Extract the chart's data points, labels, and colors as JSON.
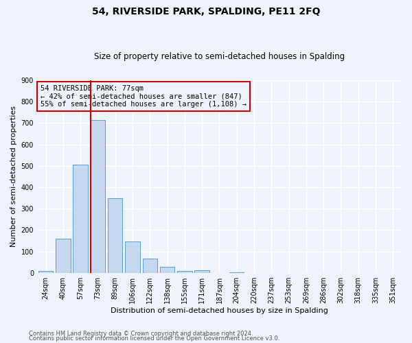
{
  "title": "54, RIVERSIDE PARK, SPALDING, PE11 2FQ",
  "subtitle": "Size of property relative to semi-detached houses in Spalding",
  "xlabel": "Distribution of semi-detached houses by size in Spalding",
  "ylabel": "Number of semi-detached properties",
  "bar_labels": [
    "24sqm",
    "40sqm",
    "57sqm",
    "73sqm",
    "89sqm",
    "106sqm",
    "122sqm",
    "138sqm",
    "155sqm",
    "171sqm",
    "187sqm",
    "204sqm",
    "220sqm",
    "237sqm",
    "253sqm",
    "269sqm",
    "286sqm",
    "302sqm",
    "318sqm",
    "335sqm",
    "351sqm"
  ],
  "bar_values": [
    8,
    160,
    505,
    715,
    350,
    148,
    65,
    28,
    10,
    13,
    0,
    3,
    0,
    0,
    0,
    0,
    0,
    0,
    0,
    0,
    0
  ],
  "bar_color": "#c5d8f0",
  "bar_edge_color": "#5a9fd4",
  "property_size": "77sqm",
  "property_name": "54 RIVERSIDE PARK",
  "pct_smaller": 42,
  "pct_smaller_count": 847,
  "pct_larger": 55,
  "pct_larger_count": 1108,
  "ylim": [
    0,
    900
  ],
  "yticks": [
    0,
    100,
    200,
    300,
    400,
    500,
    600,
    700,
    800,
    900
  ],
  "red_line_color": "#cc0000",
  "annotation_box_edge": "#cc0000",
  "footnote_line1": "Contains HM Land Registry data © Crown copyright and database right 2024.",
  "footnote_line2": "Contains public sector information licensed under the Open Government Licence v3.0.",
  "bg_color": "#eef2f9",
  "grid_color": "#ffffff",
  "title_fontsize": 10,
  "subtitle_fontsize": 8.5,
  "xlabel_fontsize": 8,
  "ylabel_fontsize": 8,
  "tick_fontsize": 7,
  "annot_fontsize": 7.5,
  "footnote_fontsize": 6
}
